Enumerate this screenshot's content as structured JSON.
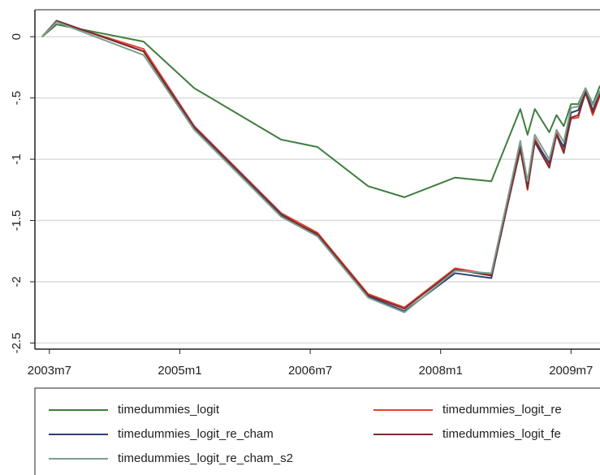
{
  "chart_data": {
    "type": "line",
    "x": [
      "2003-06",
      "2003-08",
      "2004-08",
      "2005-03",
      "2006-03",
      "2006-08",
      "2007-03",
      "2007-08",
      "2008-03",
      "2008-08",
      "2008-12",
      "2009-01",
      "2009-02",
      "2009-04",
      "2009-05",
      "2009-06",
      "2009-07",
      "2009-08",
      "2009-09",
      "2009-10",
      "2009-11"
    ],
    "series": [
      {
        "name": "timedummies_logit",
        "color": "#3f7d3f",
        "values": [
          0,
          0.1,
          -0.04,
          -0.42,
          -0.84,
          -0.9,
          -1.22,
          -1.31,
          -1.15,
          -1.18,
          -0.59,
          -0.8,
          -0.59,
          -0.78,
          -0.64,
          -0.73,
          -0.55,
          -0.55,
          -0.42,
          -0.55,
          -0.4
        ]
      },
      {
        "name": "timedummies_logit_re",
        "color": "#f0402e",
        "values": [
          0,
          0.12,
          -0.1,
          -0.73,
          -1.44,
          -1.6,
          -2.1,
          -2.21,
          -1.89,
          -1.94,
          -0.88,
          -1.25,
          -0.83,
          -1.05,
          -0.78,
          -0.93,
          -0.67,
          -0.66,
          -0.45,
          -0.64,
          -0.48
        ]
      },
      {
        "name": "timedummies_logit_re_cham",
        "color": "#2e4070",
        "values": [
          0,
          0.13,
          -0.12,
          -0.74,
          -1.45,
          -1.62,
          -2.12,
          -2.24,
          -1.93,
          -1.97,
          -0.9,
          -1.22,
          -0.85,
          -1.03,
          -0.8,
          -0.9,
          -0.62,
          -0.6,
          -0.44,
          -0.6,
          -0.46
        ]
      },
      {
        "name": "timedummies_logit_fe",
        "color": "#7a2e2e",
        "values": [
          0,
          0.13,
          -0.12,
          -0.75,
          -1.46,
          -1.61,
          -2.11,
          -2.22,
          -1.9,
          -1.95,
          -0.92,
          -1.24,
          -0.86,
          -1.07,
          -0.8,
          -0.95,
          -0.66,
          -0.64,
          -0.46,
          -0.62,
          -0.47
        ]
      },
      {
        "name": "timedummies_logit_re_cham_s2",
        "color": "#7f9e8e",
        "values": [
          0,
          0.12,
          -0.15,
          -0.76,
          -1.47,
          -1.63,
          -2.13,
          -2.25,
          -1.91,
          -1.93,
          -0.85,
          -1.18,
          -0.8,
          -1.0,
          -0.76,
          -0.86,
          -0.58,
          -0.57,
          -0.42,
          -0.56,
          -0.44
        ]
      }
    ],
    "xlim": [
      "2003-05",
      "2009-11"
    ],
    "xticks": [
      {
        "value": "2003-07",
        "label": "2003m7"
      },
      {
        "value": "2005-01",
        "label": "2005m1"
      },
      {
        "value": "2006-07",
        "label": "2006m7"
      },
      {
        "value": "2008-01",
        "label": "2008m1"
      },
      {
        "value": "2009-07",
        "label": "2009m7"
      }
    ],
    "ylim": [
      -2.55,
      0.22
    ],
    "yticks": [
      0,
      {
        "value": -0.5,
        "label": "-.5"
      },
      -1,
      {
        "value": -1.5,
        "label": "-1.5"
      },
      -2,
      {
        "value": -2.5,
        "label": "-2.5"
      }
    ],
    "grid": true,
    "legend": "bottom"
  }
}
